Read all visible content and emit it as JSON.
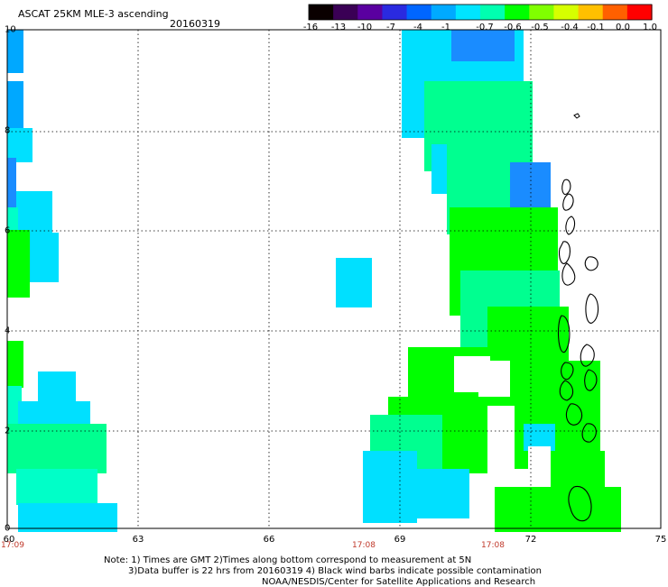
{
  "header": {
    "title": "ASCAT 25KM MLE-3 ascending",
    "date": "20160319"
  },
  "colorbar": {
    "labels": [
      "-16",
      "-13",
      "-10",
      "-7",
      "-4",
      "-1",
      "-0.7",
      "-0.6",
      "-0.5",
      "-0.4",
      "-0.1",
      "0.0",
      "1.0"
    ],
    "colors": [
      "#0a0000",
      "#3a0055",
      "#5a00a0",
      "#2a2ae0",
      "#0066ff",
      "#00aaff",
      "#00e5ff",
      "#00ffb0",
      "#00ff00",
      "#80ff00",
      "#d6ff00",
      "#ffc000",
      "#ff6000",
      "#ff0000"
    ]
  },
  "axes": {
    "y_ticks": [
      "10",
      "8",
      "6",
      "4",
      "2",
      "0"
    ],
    "x_ticks": [
      "60",
      "63",
      "66",
      "69",
      "72",
      "75"
    ],
    "time_labels": [
      "17:09",
      "17:08",
      "17:08"
    ]
  },
  "notes": {
    "line1": "Note: 1) Times are GMT 2)Times along bottom correspond to measurement at 5N",
    "line2": "3)Data buffer is 22 hrs from 20160319 4) Black wind barbs indicate possible contamination",
    "line3": "NOAA/NESDIS/Center for Satellite Applications and Research"
  }
}
